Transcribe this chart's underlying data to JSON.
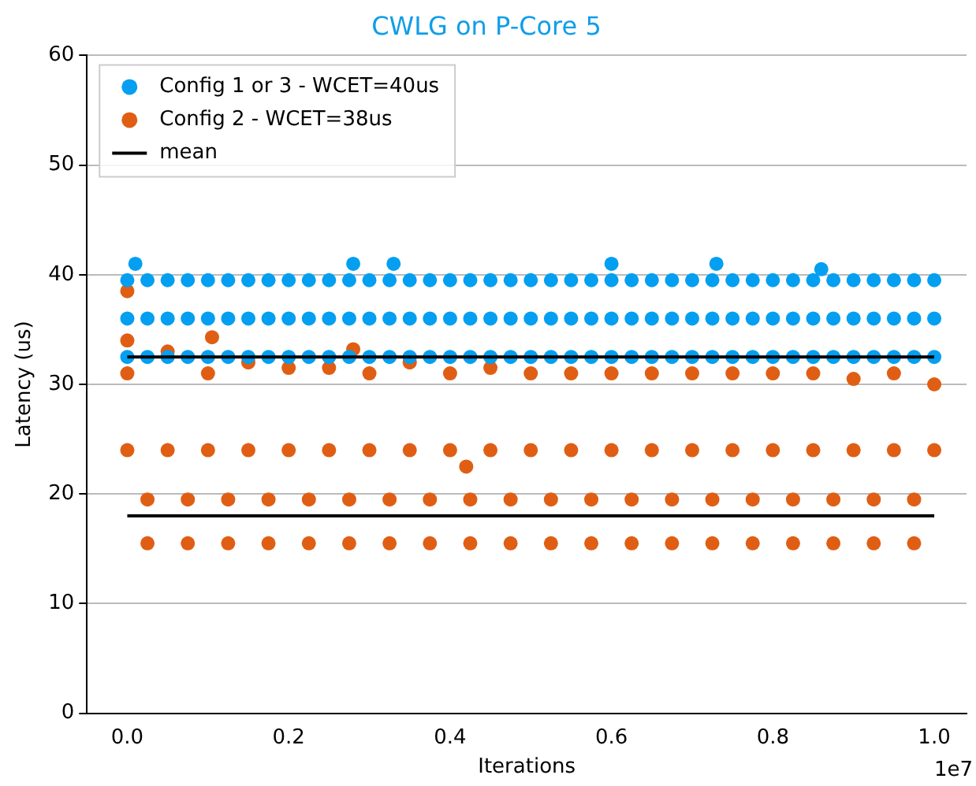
{
  "chart_data": {
    "type": "scatter",
    "title": "CWLG on P-Core 5",
    "xlabel": "Iterations",
    "ylabel": "Latency (us)",
    "xlim": [
      -0.05,
      1.04
    ],
    "xticks": [
      {
        "value": 0,
        "label": "0.0"
      },
      {
        "value": 0.2,
        "label": "0.2"
      },
      {
        "value": 0.4,
        "label": "0.4"
      },
      {
        "value": 0.6,
        "label": "0.6"
      },
      {
        "value": 0.8,
        "label": "0.8"
      },
      {
        "value": 1,
        "label": "1.0"
      }
    ],
    "ylim": [
      0,
      60
    ],
    "yticks": [
      0,
      10,
      20,
      30,
      40,
      50,
      60
    ],
    "grid": "y",
    "legend": "top left",
    "marker": "circle",
    "annotations": [
      "1e7"
    ],
    "series": [
      {
        "name": "Config 1 or 3 - WCET=40us",
        "color": "#049ff1",
        "x": [
          0,
          0.025,
          0.05,
          0.075,
          0.1,
          0.125,
          0.15,
          0.175,
          0.2,
          0.225,
          0.25,
          0.275,
          0.3,
          0.325,
          0.35,
          0.375,
          0.4,
          0.425,
          0.45,
          0.475,
          0.5,
          0.525,
          0.55,
          0.575,
          0.6,
          0.625,
          0.65,
          0.675,
          0.7,
          0.725,
          0.75,
          0.775,
          0.8,
          0.825,
          0.85,
          0.875,
          0.9,
          0.925,
          0.95,
          0.975,
          1,
          0,
          0.025,
          0.05,
          0.075,
          0.1,
          0.125,
          0.15,
          0.175,
          0.2,
          0.225,
          0.25,
          0.275,
          0.3,
          0.325,
          0.35,
          0.375,
          0.4,
          0.425,
          0.45,
          0.475,
          0.5,
          0.525,
          0.55,
          0.575,
          0.6,
          0.625,
          0.65,
          0.675,
          0.7,
          0.725,
          0.75,
          0.775,
          0.8,
          0.825,
          0.85,
          0.875,
          0.9,
          0.925,
          0.95,
          0.975,
          1,
          0,
          0.025,
          0.05,
          0.075,
          0.1,
          0.125,
          0.15,
          0.175,
          0.2,
          0.225,
          0.25,
          0.275,
          0.3,
          0.325,
          0.35,
          0.375,
          0.4,
          0.425,
          0.45,
          0.475,
          0.5,
          0.525,
          0.55,
          0.575,
          0.6,
          0.625,
          0.65,
          0.675,
          0.7,
          0.725,
          0.75,
          0.775,
          0.8,
          0.825,
          0.85,
          0.875,
          0.9,
          0.925,
          0.95,
          0.975,
          1,
          0.01,
          0.28,
          0.33,
          0.6,
          0.73,
          0.86
        ],
        "values": [
          39.5,
          39.5,
          39.5,
          39.5,
          39.5,
          39.5,
          39.5,
          39.5,
          39.5,
          39.5,
          39.5,
          39.5,
          39.5,
          39.5,
          39.5,
          39.5,
          39.5,
          39.5,
          39.5,
          39.5,
          39.5,
          39.5,
          39.5,
          39.5,
          39.5,
          39.5,
          39.5,
          39.5,
          39.5,
          39.5,
          39.5,
          39.5,
          39.5,
          39.5,
          39.5,
          39.5,
          39.5,
          39.5,
          39.5,
          39.5,
          39.5,
          36,
          36,
          36,
          36,
          36,
          36,
          36,
          36,
          36,
          36,
          36,
          36,
          36,
          36,
          36,
          36,
          36,
          36,
          36,
          36,
          36,
          36,
          36,
          36,
          36,
          36,
          36,
          36,
          36,
          36,
          36,
          36,
          36,
          36,
          36,
          36,
          36,
          36,
          36,
          36,
          36,
          32.5,
          32.5,
          32.5,
          32.5,
          32.5,
          32.5,
          32.5,
          32.5,
          32.5,
          32.5,
          32.5,
          32.5,
          32.5,
          32.5,
          32.5,
          32.5,
          32.5,
          32.5,
          32.5,
          32.5,
          32.5,
          32.5,
          32.5,
          32.5,
          32.5,
          32.5,
          32.5,
          32.5,
          32.5,
          32.5,
          32.5,
          32.5,
          32.5,
          32.5,
          32.5,
          32.5,
          32.5,
          32.5,
          32.5,
          32.5,
          32.5,
          41,
          41,
          41,
          41,
          41,
          40.5
        ]
      },
      {
        "name": "Config 2 - WCET=38us",
        "color": "#e05e14",
        "x": [
          0,
          0.05,
          0.1,
          0.15,
          0.2,
          0.25,
          0.3,
          0.35,
          0.4,
          0.45,
          0.5,
          0.55,
          0.6,
          0.65,
          0.7,
          0.75,
          0.8,
          0.85,
          0.9,
          0.95,
          1,
          0,
          0.05,
          0.1,
          0.15,
          0.2,
          0.25,
          0.3,
          0.35,
          0.4,
          0.45,
          0.5,
          0.55,
          0.6,
          0.65,
          0.7,
          0.75,
          0.8,
          0.85,
          0.9,
          0.95,
          1,
          0.025,
          0.075,
          0.125,
          0.175,
          0.225,
          0.275,
          0.325,
          0.375,
          0.425,
          0.475,
          0.525,
          0.575,
          0.625,
          0.675,
          0.725,
          0.775,
          0.825,
          0.875,
          0.925,
          0.975,
          0.025,
          0.075,
          0.125,
          0.175,
          0.225,
          0.275,
          0.325,
          0.375,
          0.425,
          0.475,
          0.525,
          0.575,
          0.625,
          0.675,
          0.725,
          0.775,
          0.825,
          0.875,
          0.925,
          0.975,
          0,
          0,
          0.105,
          0.28,
          0.42
        ],
        "values": [
          31,
          33,
          31,
          32,
          31.5,
          31.5,
          31,
          32,
          31,
          31.5,
          31,
          31,
          31,
          31,
          31,
          31,
          31,
          31,
          30.5,
          31,
          30,
          24,
          24,
          24,
          24,
          24,
          24,
          24,
          24,
          24,
          24,
          24,
          24,
          24,
          24,
          24,
          24,
          24,
          24,
          24,
          24,
          24,
          15.5,
          15.5,
          15.5,
          15.5,
          15.5,
          15.5,
          15.5,
          15.5,
          15.5,
          15.5,
          15.5,
          15.5,
          15.5,
          15.5,
          15.5,
          15.5,
          15.5,
          15.5,
          15.5,
          15.5,
          19.5,
          19.5,
          19.5,
          19.5,
          19.5,
          19.5,
          19.5,
          19.5,
          19.5,
          19.5,
          19.5,
          19.5,
          19.5,
          19.5,
          19.5,
          19.5,
          19.5,
          19.5,
          19.5,
          19.5,
          38.5,
          34,
          34.3,
          33.2,
          22.5
        ]
      },
      {
        "name": "mean",
        "type": "line",
        "color": "#000000",
        "marker": "none",
        "x": [
          0,
          1
        ],
        "values": [
          32.5,
          32.5
        ]
      },
      {
        "type": "line",
        "color": "#000000",
        "marker": "none",
        "x": [
          0,
          1
        ],
        "values": [
          18,
          18
        ]
      }
    ]
  }
}
